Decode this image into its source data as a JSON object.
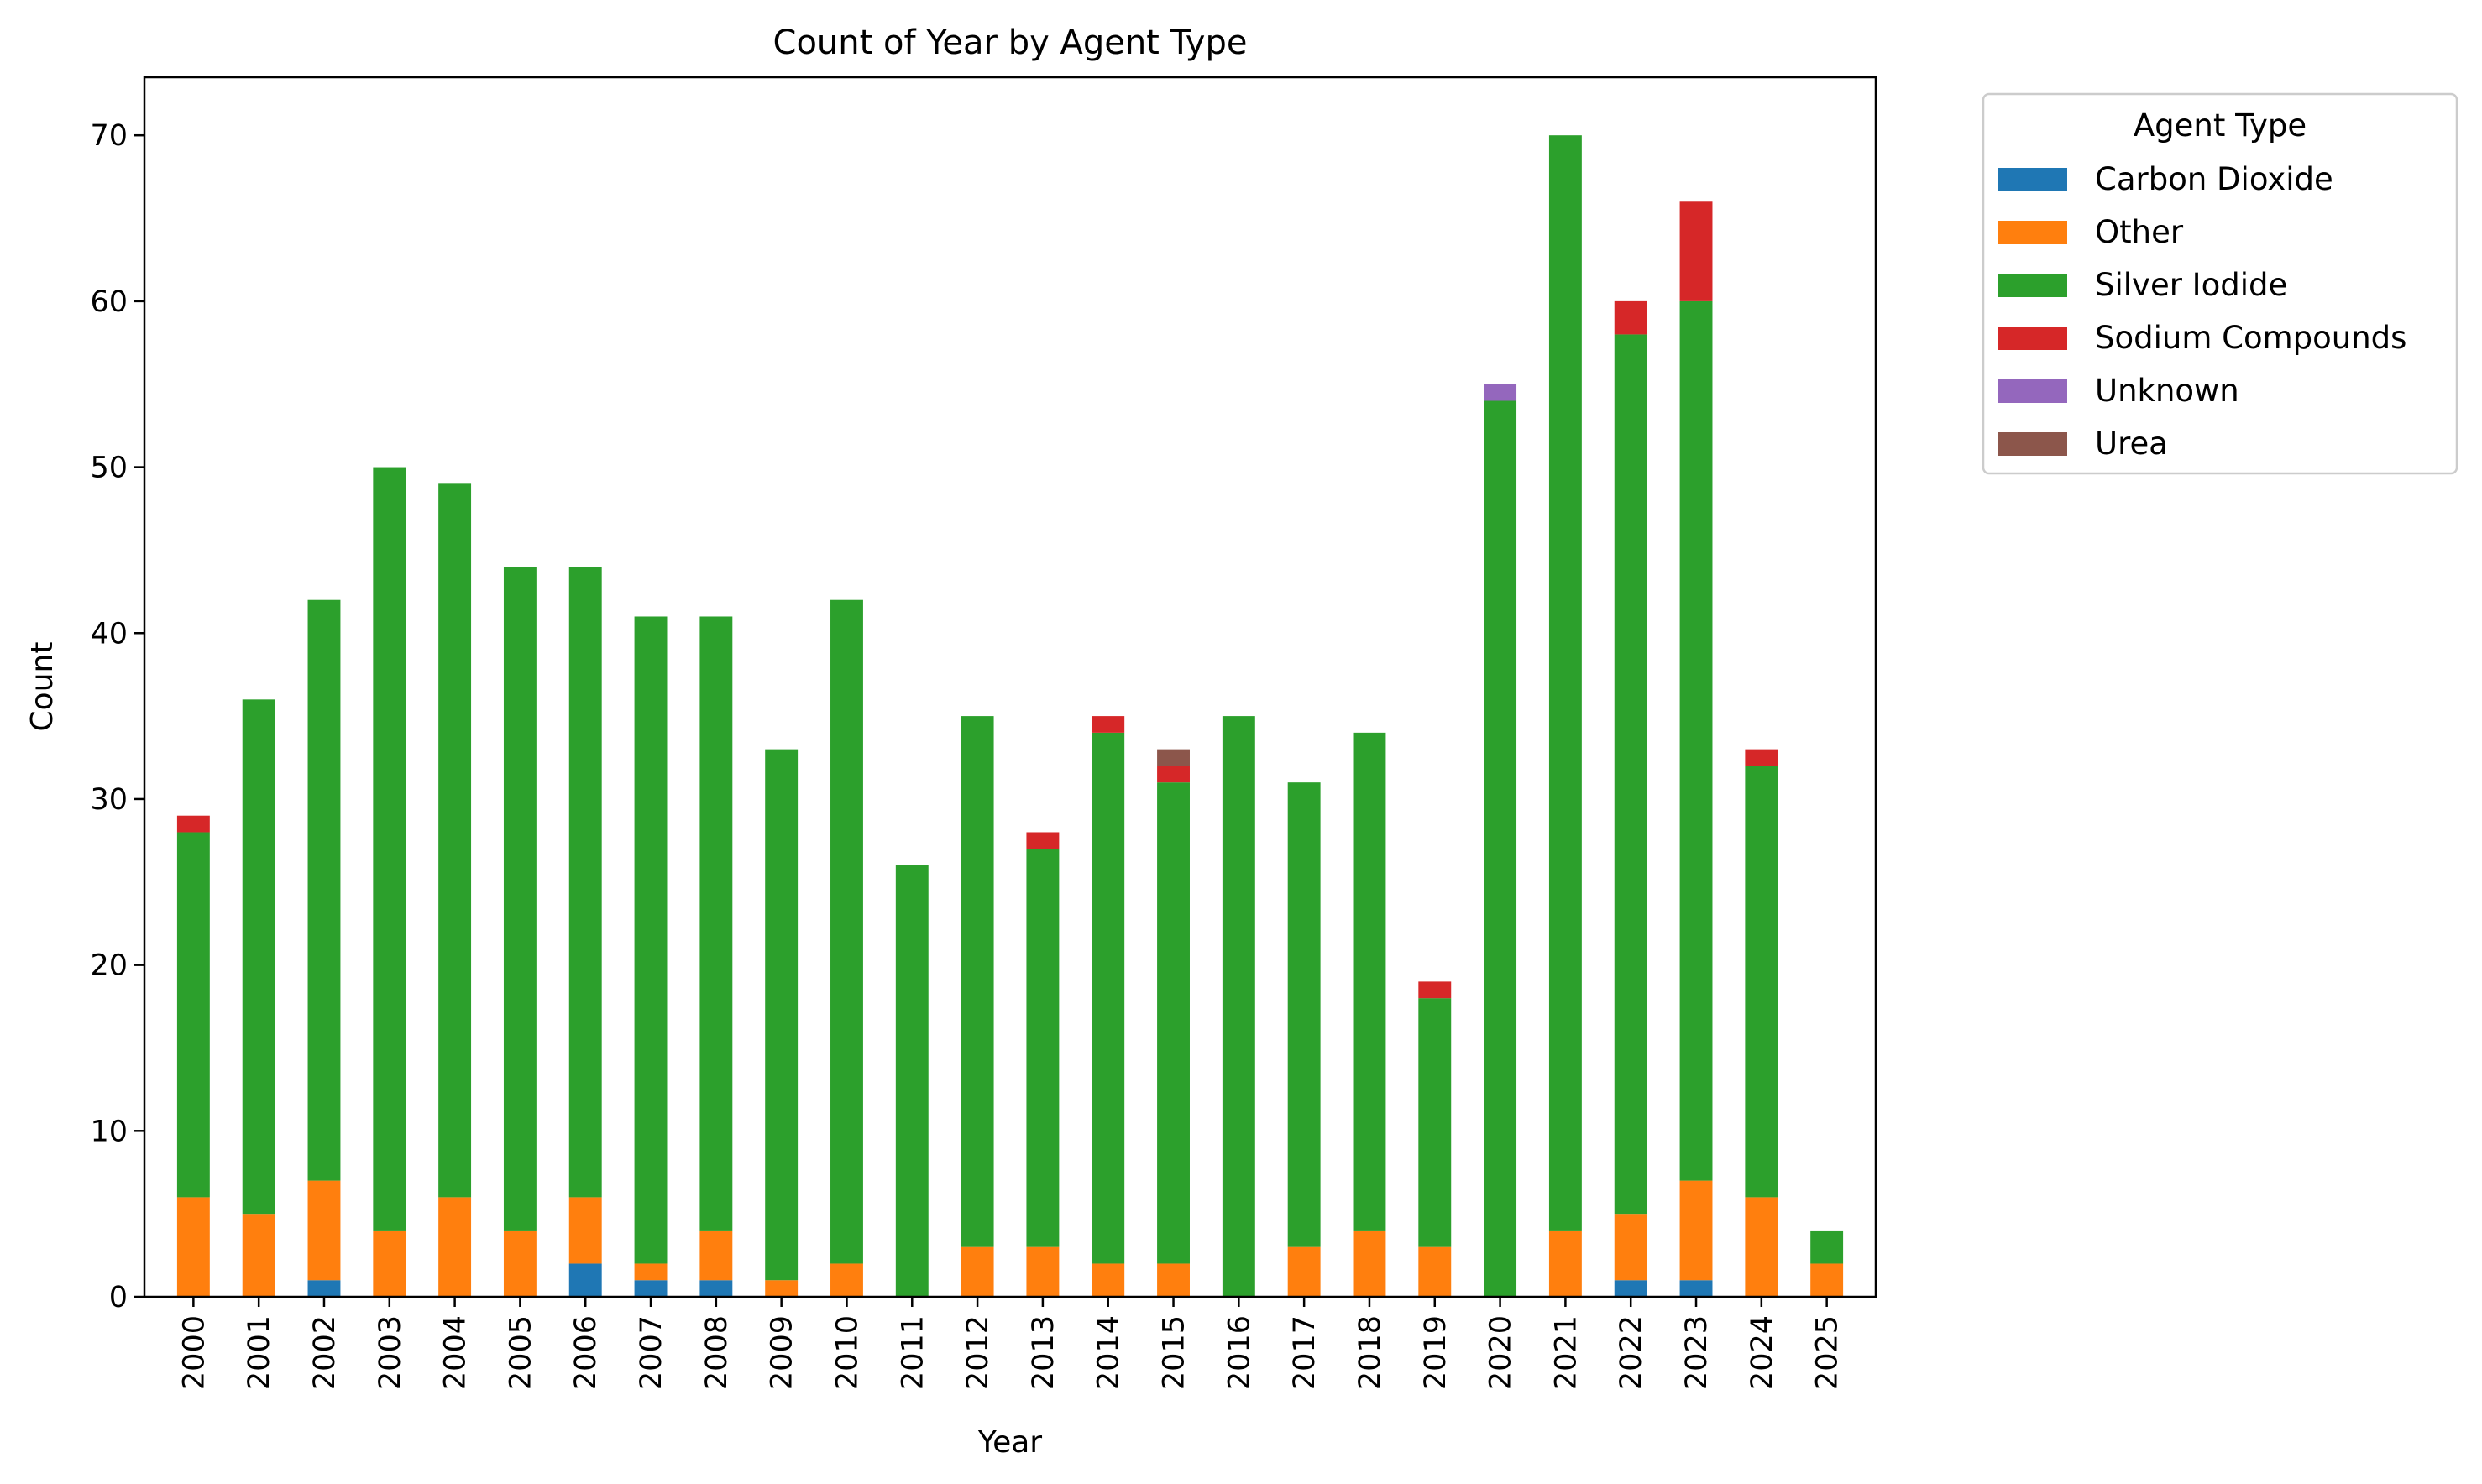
{
  "chart_data": {
    "type": "bar",
    "stacked": true,
    "title": "Count of Year by Agent Type",
    "xlabel": "Year",
    "ylabel": "Count",
    "ylim": [
      0,
      73.5
    ],
    "yticks": [
      0,
      10,
      20,
      30,
      40,
      50,
      60,
      70
    ],
    "grid": false,
    "legend": {
      "title": "Agent Type",
      "placement": "outside-upper-right"
    },
    "categories": [
      "2000",
      "2001",
      "2002",
      "2003",
      "2004",
      "2005",
      "2006",
      "2007",
      "2008",
      "2009",
      "2010",
      "2011",
      "2012",
      "2013",
      "2014",
      "2015",
      "2016",
      "2017",
      "2018",
      "2019",
      "2020",
      "2021",
      "2022",
      "2023",
      "2024",
      "2025"
    ],
    "series": [
      {
        "name": "Carbon Dioxide",
        "color": "#1f77b4",
        "values": [
          0,
          0,
          1,
          0,
          0,
          0,
          2,
          1,
          1,
          0,
          0,
          0,
          0,
          0,
          0,
          0,
          0,
          0,
          0,
          0,
          0,
          0,
          1,
          1,
          0,
          0
        ]
      },
      {
        "name": "Other",
        "color": "#ff7f0e",
        "values": [
          6,
          5,
          6,
          4,
          6,
          4,
          4,
          1,
          3,
          1,
          2,
          0,
          3,
          3,
          2,
          2,
          0,
          3,
          4,
          3,
          0,
          4,
          4,
          6,
          6,
          2
        ]
      },
      {
        "name": "Silver Iodide",
        "color": "#2ca02c",
        "values": [
          22,
          31,
          35,
          46,
          43,
          40,
          38,
          39,
          37,
          32,
          40,
          26,
          32,
          24,
          32,
          29,
          35,
          28,
          30,
          15,
          54,
          66,
          53,
          53,
          26,
          2
        ]
      },
      {
        "name": "Sodium Compounds",
        "color": "#d62728",
        "values": [
          1,
          0,
          0,
          0,
          0,
          0,
          0,
          0,
          0,
          0,
          0,
          0,
          0,
          1,
          1,
          1,
          0,
          0,
          0,
          1,
          0,
          0,
          2,
          6,
          1,
          0
        ]
      },
      {
        "name": "Unknown",
        "color": "#9467bd",
        "values": [
          0,
          0,
          0,
          0,
          0,
          0,
          0,
          0,
          0,
          0,
          0,
          0,
          0,
          0,
          0,
          0,
          0,
          0,
          0,
          0,
          1,
          0,
          0,
          0,
          0,
          0
        ]
      },
      {
        "name": "Urea",
        "color": "#8c564b",
        "values": [
          0,
          0,
          0,
          0,
          0,
          0,
          0,
          0,
          0,
          0,
          0,
          0,
          0,
          0,
          0,
          1,
          0,
          0,
          0,
          0,
          0,
          0,
          0,
          0,
          0,
          0
        ]
      }
    ]
  }
}
